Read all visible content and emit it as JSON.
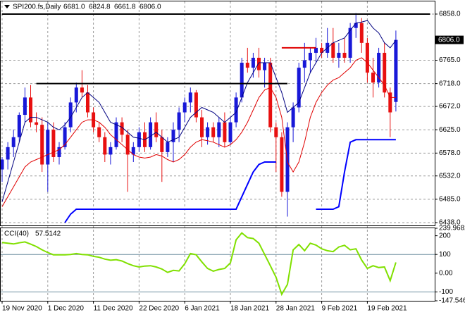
{
  "chart_data": {
    "type": "candlestick",
    "header": {
      "symbol": "SPI200.fs,Daily",
      "ohlc": [
        {
          "value": 6681,
          "label": "6681.0"
        },
        {
          "value": 6824.8,
          "label": "6824.8"
        },
        {
          "value": 6661.8,
          "label": "6661.8"
        },
        {
          "value": 6806,
          "label": "6806.0"
        }
      ]
    },
    "categories": [
      "19 Nov 2020",
      null,
      null,
      null,
      null,
      null,
      null,
      null,
      "1 Dec 2020",
      null,
      null,
      null,
      null,
      null,
      null,
      null,
      "11 Dec 2020",
      null,
      null,
      null,
      null,
      null,
      null,
      null,
      "22 Dec 2020",
      null,
      null,
      null,
      null,
      null,
      null,
      null,
      "6 Jan 2021",
      null,
      null,
      null,
      null,
      null,
      null,
      null,
      "18 Jan 2021",
      null,
      null,
      null,
      null,
      null,
      null,
      null,
      "28 Jan 2021",
      null,
      null,
      null,
      null,
      null,
      null,
      null,
      "9 Feb 2021",
      null,
      null,
      null,
      null,
      null,
      null,
      null,
      "19 Feb 2021",
      null,
      null,
      null,
      null,
      null
    ],
    "open": [
      6545,
      6565,
      6590,
      6610,
      6655,
      6690,
      6640,
      6635,
      6555,
      6625,
      6570,
      6590,
      6630,
      6680,
      6710,
      6700,
      6660,
      6630,
      6610,
      6575,
      6590,
      6640,
      6615,
      6575,
      6590,
      6620,
      6590,
      6640,
      6610,
      6580,
      6600,
      6625,
      6660,
      6680,
      6700,
      6650,
      6610,
      6630,
      6610,
      6640,
      6600,
      6640,
      6690,
      6760,
      6750,
      6770,
      6745,
      6760,
      6630,
      6610,
      6500,
      6630,
      6670,
      6750,
      6765,
      6780,
      6790,
      6780,
      6800,
      6770,
      6780,
      6770,
      6830,
      6840,
      6800,
      6740,
      6720,
      6780,
      6700,
      6681
    ],
    "high": [
      6570,
      6600,
      6625,
      6660,
      6710,
      6715,
      6660,
      6650,
      6640,
      6640,
      6600,
      6640,
      6690,
      6720,
      6745,
      6715,
      6670,
      6640,
      6620,
      6600,
      6650,
      6650,
      6625,
      6600,
      6630,
      6640,
      6650,
      6660,
      6625,
      6610,
      6640,
      6670,
      6690,
      6710,
      6705,
      6665,
      6640,
      6640,
      6650,
      6660,
      6650,
      6700,
      6770,
      6790,
      6780,
      6790,
      6770,
      6770,
      6640,
      6620,
      6640,
      6680,
      6760,
      6800,
      6790,
      6810,
      6800,
      6830,
      6830,
      6800,
      6810,
      6840,
      6860,
      6850,
      6810,
      6770,
      6790,
      6800,
      6710,
      6824.8
    ],
    "low": [
      6520,
      6545,
      6570,
      6600,
      6640,
      6630,
      6620,
      6540,
      6500,
      6560,
      6555,
      6585,
      6620,
      6660,
      6690,
      6650,
      6620,
      6600,
      6560,
      6555,
      6585,
      6600,
      6500,
      6560,
      6580,
      6580,
      6585,
      6600,
      6520,
      6570,
      6560,
      6600,
      6640,
      6660,
      6640,
      6590,
      6595,
      6600,
      6590,
      6590,
      6595,
      6630,
      6680,
      6740,
      6730,
      6730,
      6710,
      6620,
      6540,
      6490,
      6450,
      6600,
      6660,
      6720,
      6740,
      6760,
      6770,
      6770,
      6760,
      6750,
      6760,
      6760,
      6810,
      6780,
      6720,
      6690,
      6710,
      6690,
      6610,
      6661.8
    ],
    "close": [
      6565,
      6590,
      6610,
      6655,
      6690,
      6640,
      6635,
      6555,
      6625,
      6570,
      6590,
      6630,
      6680,
      6710,
      6700,
      6660,
      6630,
      6610,
      6575,
      6590,
      6640,
      6615,
      6575,
      6590,
      6620,
      6590,
      6640,
      6610,
      6580,
      6600,
      6625,
      6660,
      6680,
      6700,
      6650,
      6610,
      6630,
      6610,
      6640,
      6600,
      6640,
      6690,
      6760,
      6750,
      6770,
      6745,
      6760,
      6630,
      6610,
      6500,
      6630,
      6670,
      6750,
      6765,
      6780,
      6790,
      6780,
      6800,
      6770,
      6780,
      6770,
      6830,
      6840,
      6800,
      6740,
      6720,
      6780,
      6700,
      6660,
      6806
    ],
    "up_color": "#1818d8",
    "down_color": "#e81010",
    "ma_fast": {
      "color": "#000080",
      "values": [
        6480,
        6520,
        6560,
        6600,
        6640,
        6650,
        6650,
        6645,
        6640,
        6630,
        6625,
        6635,
        6650,
        6670,
        6690,
        6700,
        6690,
        6680,
        6660,
        6640,
        6635,
        6630,
        6620,
        6610,
        6608,
        6605,
        6612,
        6620,
        6610,
        6600,
        6605,
        6610,
        6630,
        6650,
        6660,
        6670,
        6665,
        6660,
        6650,
        6640,
        6650,
        6660,
        6690,
        6720,
        6740,
        6760,
        6760,
        6760,
        6730,
        6700,
        6660,
        6670,
        6680,
        6710,
        6740,
        6760,
        6780,
        6790,
        6800,
        6805,
        6810,
        6825,
        6840,
        6842,
        6845,
        6830,
        6820,
        6800,
        6790,
        6805
      ]
    },
    "ma_slow": {
      "color": "#e00000",
      "values": [
        6470,
        6490,
        6510,
        6530,
        6550,
        6560,
        6565,
        6570,
        6575,
        6580,
        6585,
        6595,
        6610,
        6625,
        6640,
        6645,
        6645,
        6640,
        6630,
        6615,
        6605,
        6595,
        6585,
        6575,
        6570,
        6568,
        6570,
        6575,
        6572,
        6565,
        6560,
        6565,
        6575,
        6590,
        6600,
        6605,
        6603,
        6600,
        6595,
        6590,
        6595,
        6605,
        6620,
        6640,
        6665,
        6690,
        6705,
        6710,
        6690,
        6650,
        6560,
        6540,
        6560,
        6600,
        6650,
        6680,
        6700,
        6715,
        6725,
        6730,
        6740,
        6750,
        6765,
        6770,
        6760,
        6745,
        6730,
        6715,
        6690,
        6690
      ]
    },
    "stop_line": {
      "color": "#0000ff",
      "values": [
        null,
        null,
        null,
        null,
        null,
        null,
        null,
        null,
        null,
        null,
        null,
        6438,
        6455,
        6465,
        6465,
        6465,
        6465,
        6465,
        6465,
        6465,
        6465,
        6465,
        6465,
        6465,
        6465,
        6465,
        6465,
        6465,
        6465,
        6465,
        6465,
        6465,
        6465,
        6465,
        6465,
        6465,
        6465,
        6465,
        6465,
        6465,
        6465,
        6465,
        6490,
        6515,
        6540,
        6555,
        6560,
        6560,
        6560,
        null,
        null,
        null,
        null,
        null,
        null,
        6465,
        6465,
        6465,
        6465,
        6470,
        6540,
        6600,
        6605,
        6605,
        6605,
        6605,
        6605,
        6605,
        6605,
        6605
      ]
    },
    "levels": [
      {
        "value": 6858,
        "color": "#000000",
        "from": 0,
        "to": 75
      },
      {
        "value": 6718,
        "color": "#000000",
        "from": 6,
        "to": 50
      },
      {
        "value": 6790,
        "color": "#e00000",
        "from": 49,
        "to": 55
      }
    ],
    "ylim": [
      6432.3,
      6883.5
    ],
    "yticks": [
      {
        "value": 6858,
        "label": "6858.0"
      },
      {
        "value": 6765,
        "label": "6765.0"
      },
      {
        "value": 6718,
        "label": "6718.0"
      },
      {
        "value": 6672,
        "label": "6672.0"
      },
      {
        "value": 6625,
        "label": "6625.0"
      },
      {
        "value": 6578,
        "label": "6578.0"
      },
      {
        "value": 6532,
        "label": "6532.0"
      },
      {
        "value": 6485,
        "label": "6485.0"
      },
      {
        "value": 6438,
        "label": "6438.0"
      }
    ],
    "last_price": {
      "value": 6806,
      "label": "6806.0"
    },
    "cci": {
      "label": "CCI(40)",
      "last": {
        "value": 57.5142,
        "label": "57.5142"
      },
      "color": "#80e000",
      "level_color": "#6f8fa0",
      "values": [
        164,
        160,
        156,
        162,
        167,
        155,
        142,
        125,
        110,
        98,
        98,
        98,
        100,
        105,
        100,
        98,
        90,
        85,
        75,
        69,
        72,
        65,
        51,
        40,
        33,
        38,
        40,
        33,
        22,
        4,
        15,
        12,
        50,
        105,
        98,
        60,
        25,
        11,
        20,
        25,
        55,
        178,
        215,
        190,
        185,
        160,
        100,
        40,
        -22,
        -113,
        -60,
        124,
        153,
        120,
        160,
        150,
        130,
        120,
        115,
        140,
        149,
        125,
        130,
        70,
        25,
        40,
        30,
        33,
        -40,
        57.5142
      ],
      "ylim": [
        -147.546,
        239.9682
      ],
      "yticks": [
        {
          "value": 239.9682,
          "label": "239.9682"
        },
        200,
        100,
        {
          "value": 0,
          "label": "0.00"
        },
        -100,
        {
          "value": -147.546,
          "label": "-147.546"
        }
      ],
      "levels": [
        100,
        -100
      ]
    }
  }
}
